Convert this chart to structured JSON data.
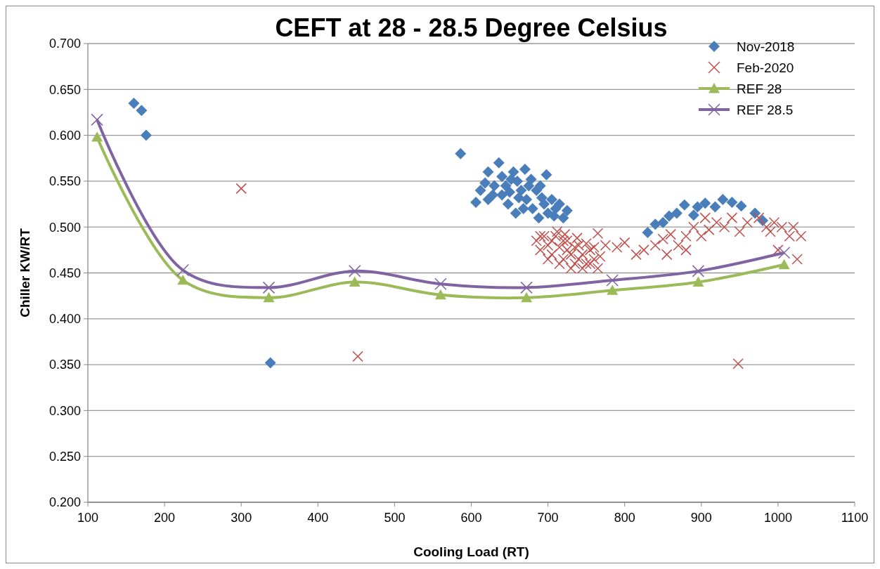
{
  "chart_data": {
    "type": "scatter",
    "title": "CEFT at 28 - 28.5 Degree Celsius",
    "xlabel": "Cooling Load (RT)",
    "ylabel": "Chiller KW/RT",
    "xlim": [
      100,
      1100
    ],
    "xticks": [
      100,
      200,
      300,
      400,
      500,
      600,
      700,
      800,
      900,
      1000,
      1100
    ],
    "ylim": [
      0.2,
      0.7
    ],
    "yticks": [
      {
        "value": 0.2,
        "label": "0.200"
      },
      {
        "value": 0.25,
        "label": "0.250"
      },
      {
        "value": 0.3,
        "label": "0.300"
      },
      {
        "value": 0.35,
        "label": "0.350"
      },
      {
        "value": 0.4,
        "label": "0.400"
      },
      {
        "value": 0.45,
        "label": "0.450"
      },
      {
        "value": 0.5,
        "label": "0.500"
      },
      {
        "value": 0.55,
        "label": "0.550"
      },
      {
        "value": 0.6,
        "label": "0.600"
      },
      {
        "value": 0.65,
        "label": "0.650"
      },
      {
        "value": 0.7,
        "label": "0.700"
      }
    ],
    "grid": "y",
    "legend": "top right",
    "series": [
      {
        "name": "Nov-2018",
        "marker": "diamond",
        "color": "#4a7ebb",
        "x": [
          160,
          170,
          176,
          338,
          586,
          606,
          612,
          618,
          622,
          628,
          636,
          640,
          645,
          650,
          655,
          660,
          665,
          670,
          672,
          678,
          680,
          685,
          690,
          695,
          698,
          700,
          705,
          710,
          715,
          720,
          725,
          630,
          648,
          658,
          668,
          688,
          652,
          662,
          675,
          692,
          708,
          640,
          622,
          830,
          840,
          850,
          858,
          868,
          878,
          890,
          895,
          905,
          918,
          928,
          940,
          952,
          970,
          980
        ],
        "values": [
          0.635,
          0.627,
          0.6,
          0.352,
          0.58,
          0.527,
          0.54,
          0.548,
          0.56,
          0.535,
          0.57,
          0.555,
          0.545,
          0.538,
          0.56,
          0.55,
          0.54,
          0.563,
          0.53,
          0.552,
          0.52,
          0.54,
          0.545,
          0.525,
          0.557,
          0.515,
          0.53,
          0.52,
          0.525,
          0.51,
          0.518,
          0.545,
          0.525,
          0.515,
          0.52,
          0.51,
          0.552,
          0.532,
          0.545,
          0.532,
          0.512,
          0.535,
          0.53,
          0.494,
          0.503,
          0.505,
          0.512,
          0.515,
          0.524,
          0.513,
          0.522,
          0.526,
          0.522,
          0.53,
          0.527,
          0.523,
          0.515,
          0.507
        ]
      },
      {
        "name": "Feb-2020",
        "marker": "cross",
        "color": "#c0504d",
        "x": [
          300,
          452,
          948,
          685,
          690,
          695,
          700,
          705,
          710,
          715,
          720,
          725,
          730,
          735,
          740,
          745,
          750,
          755,
          760,
          765,
          745,
          730,
          700,
          690,
          712,
          722,
          738,
          750,
          760,
          768,
          715,
          705,
          725,
          740,
          755,
          735,
          720,
          775,
          790,
          800,
          815,
          825,
          840,
          850,
          860,
          870,
          880,
          890,
          900,
          910,
          920,
          930,
          940,
          950,
          960,
          975,
          985,
          995,
          1005,
          1015,
          1020,
          1030,
          1025,
          1000,
          990,
          880,
          855,
          765,
          905
        ],
        "values": [
          0.542,
          0.359,
          0.351,
          0.485,
          0.475,
          0.49,
          0.48,
          0.47,
          0.49,
          0.478,
          0.465,
          0.485,
          0.47,
          0.46,
          0.48,
          0.47,
          0.46,
          0.475,
          0.465,
          0.455,
          0.455,
          0.455,
          0.465,
          0.49,
          0.495,
          0.492,
          0.488,
          0.482,
          0.478,
          0.468,
          0.46,
          0.485,
          0.475,
          0.465,
          0.46,
          0.478,
          0.485,
          0.48,
          0.478,
          0.483,
          0.47,
          0.475,
          0.48,
          0.487,
          0.492,
          0.48,
          0.49,
          0.5,
          0.49,
          0.497,
          0.505,
          0.5,
          0.51,
          0.495,
          0.505,
          0.51,
          0.5,
          0.505,
          0.5,
          0.49,
          0.5,
          0.49,
          0.465,
          0.475,
          0.495,
          0.475,
          0.47,
          0.493,
          0.51
        ]
      },
      {
        "name": "REF 28",
        "type": "line",
        "marker": "triangle",
        "color": "#9bbb59",
        "x": [
          112,
          224,
          336,
          448,
          560,
          672,
          784,
          896,
          1008
        ],
        "values": [
          0.598,
          0.442,
          0.423,
          0.44,
          0.426,
          0.423,
          0.431,
          0.44,
          0.459
        ]
      },
      {
        "name": "REF 28.5",
        "type": "line",
        "marker": "cross",
        "color": "#8064a2",
        "x": [
          112,
          224,
          336,
          448,
          560,
          672,
          784,
          896,
          1008
        ],
        "values": [
          0.617,
          0.453,
          0.434,
          0.452,
          0.438,
          0.434,
          0.442,
          0.452,
          0.472
        ]
      }
    ]
  }
}
